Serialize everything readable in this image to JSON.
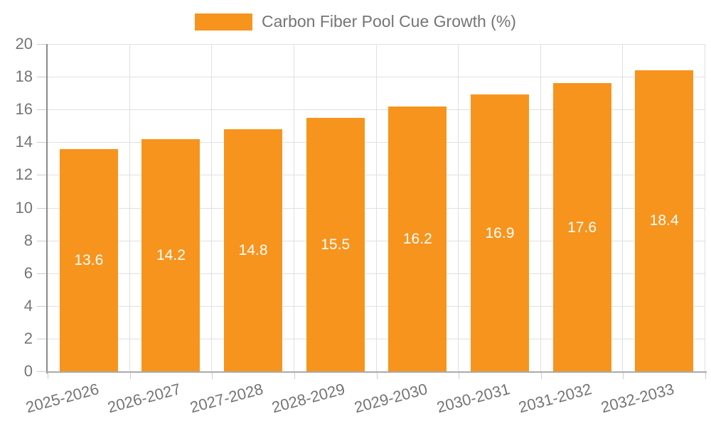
{
  "legend": {
    "label": "Carbon Fiber Pool Cue Growth (%)"
  },
  "chart_data": {
    "type": "bar",
    "title": "",
    "xlabel": "",
    "ylabel": "",
    "categories": [
      "2025-2026",
      "2026-2027",
      "2027-2028",
      "2028-2029",
      "2029-2030",
      "2030-2031",
      "2031-2032",
      "2032-2033"
    ],
    "series": [
      {
        "name": "Carbon Fiber Pool Cue Growth (%)",
        "values": [
          13.6,
          14.2,
          14.8,
          15.5,
          16.2,
          16.9,
          17.6,
          18.4
        ]
      }
    ],
    "value_label_format": "one_decimal",
    "ylim": [
      0,
      20
    ],
    "yticks": [
      0,
      2,
      4,
      6,
      8,
      10,
      12,
      14,
      16,
      18,
      20
    ],
    "grid": true,
    "legend_position": "top-center",
    "x_label_rotation_deg": -15,
    "colors": {
      "bar": "#F7941E",
      "value_label": "#FFFFFF",
      "axis_y": "#8A8A8A",
      "axis_x": "#AAAAAA",
      "gridline": "#E0E0E0",
      "tick_mark": "#CCCCCC",
      "tick_text": "#757575",
      "background": "#FFFFFF"
    }
  }
}
